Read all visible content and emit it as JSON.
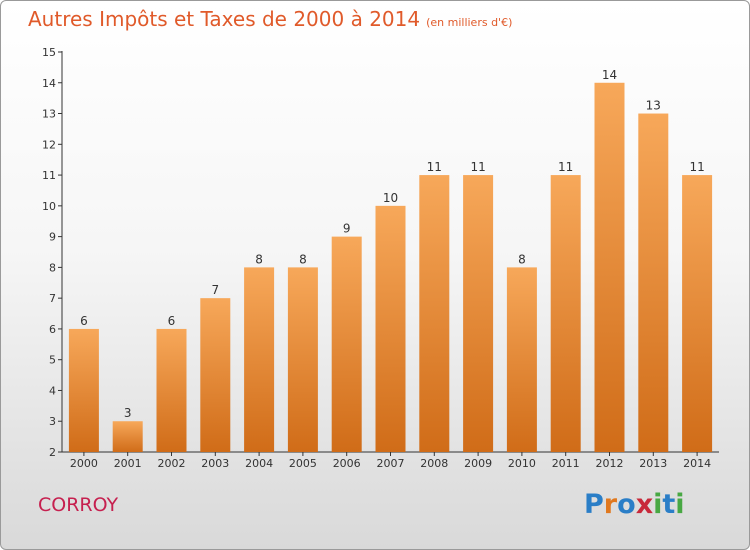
{
  "title": {
    "main": "Autres Impôts et Taxes de 2000 à 2014",
    "unit": "(en milliers d'€)"
  },
  "commune": "CORROY",
  "logo": {
    "letters": [
      "P",
      "r",
      "o",
      "x",
      "i",
      "t",
      "i"
    ],
    "colors": [
      "#2a7ec7",
      "#e0781e",
      "#2a7ec7",
      "#c8293a",
      "#48a843",
      "#2a7ec7",
      "#48a843"
    ]
  },
  "colors": {
    "bar_light": "#f7a85a",
    "bar_dark": "#d06c18",
    "axis": "#333333",
    "title": "#e05a2a",
    "commune": "#c6204f"
  },
  "chart_data": {
    "type": "bar",
    "categories": [
      "2000",
      "2001",
      "2002",
      "2003",
      "2004",
      "2005",
      "2006",
      "2007",
      "2008",
      "2009",
      "2010",
      "2011",
      "2012",
      "2013",
      "2014"
    ],
    "values": [
      6,
      3,
      6,
      7,
      8,
      8,
      9,
      10,
      11,
      11,
      8,
      11,
      14,
      13,
      11
    ],
    "ylim": [
      2,
      15
    ],
    "yticks": [
      2,
      3,
      4,
      5,
      6,
      7,
      8,
      9,
      10,
      11,
      12,
      13,
      14,
      15
    ],
    "grid": false
  }
}
